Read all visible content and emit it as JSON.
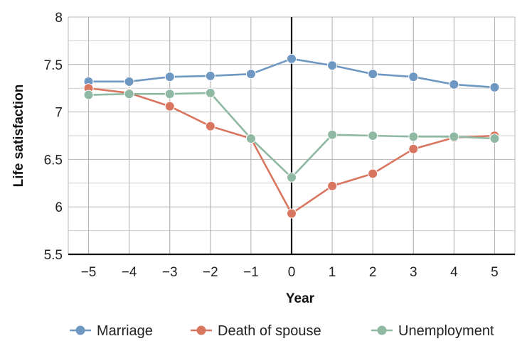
{
  "chart_data": {
    "type": "line",
    "title": "",
    "xlabel": "Year",
    "ylabel": "Life satisfaction",
    "x": [
      -5,
      -4,
      -3,
      -2,
      -1,
      0,
      1,
      2,
      3,
      4,
      5
    ],
    "x_tick_labels": [
      "−5",
      "−4",
      "−3",
      "−2",
      "−1",
      "0",
      "1",
      "2",
      "3",
      "4",
      "5"
    ],
    "y_ticks": [
      5.5,
      6,
      6.5,
      7,
      7.5,
      8
    ],
    "y_tick_labels": [
      "5.5",
      "6",
      "6.5",
      "7",
      "7.5",
      "8"
    ],
    "ylim": [
      5.5,
      8
    ],
    "xlim": [
      -5.5,
      5.5
    ],
    "grid": true,
    "minor_grid": true,
    "legend_position": "bottom",
    "series": [
      {
        "name": "Marriage",
        "color": "#6e97c2",
        "values": [
          7.32,
          7.32,
          7.37,
          7.38,
          7.4,
          7.56,
          7.49,
          7.4,
          7.37,
          7.29,
          7.26
        ]
      },
      {
        "name": "Death of spouse",
        "color": "#d97660",
        "values": [
          7.25,
          7.2,
          7.06,
          6.85,
          6.72,
          5.93,
          6.22,
          6.35,
          6.61,
          6.73,
          6.75
        ]
      },
      {
        "name": "Unemployment",
        "color": "#8fb9a2",
        "values": [
          7.18,
          7.19,
          7.19,
          7.2,
          6.72,
          6.31,
          6.76,
          6.75,
          6.74,
          6.74,
          6.72
        ]
      }
    ]
  }
}
